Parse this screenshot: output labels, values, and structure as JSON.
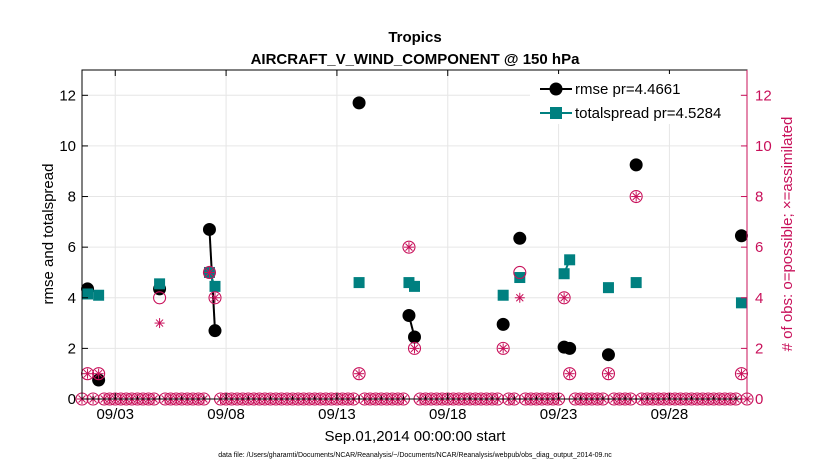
{
  "chart_data": {
    "type": "line",
    "title": "Tropics",
    "subtitle": "AIRCRAFT_V_WIND_COMPONENT @ 150 hPa",
    "xlabel": "Sep.01,2014 00:00:00 start",
    "ylabel": "rmse and totalspread",
    "ylabel_right": "# of obs: o=possible; ×=assimilated",
    "xlim": [
      1.5,
      31.5
    ],
    "ylim": [
      0,
      13
    ],
    "ylim_right": [
      0,
      13
    ],
    "x_ticks": [
      3,
      8,
      13,
      18,
      23,
      28
    ],
    "x_tick_labels": [
      "09/03",
      "09/08",
      "09/13",
      "09/18",
      "09/23",
      "09/28"
    ],
    "y_ticks": [
      0,
      2,
      4,
      6,
      8,
      10,
      12
    ],
    "y_tick_labels": [
      "0",
      "2",
      "4",
      "6",
      "8",
      "10",
      "12"
    ],
    "grid": true,
    "legend_position": "top-right",
    "series": [
      {
        "name": "rmse",
        "legend_label": "rmse pr=4.4661",
        "color": "#000000",
        "marker": "circle",
        "points": [
          [
            1.75,
            4.35
          ],
          [
            2.25,
            0.75
          ],
          [
            5.0,
            4.35
          ],
          [
            7.25,
            6.7
          ],
          [
            7.5,
            2.7
          ],
          [
            14.0,
            11.7
          ],
          [
            16.25,
            3.3
          ],
          [
            16.5,
            2.45
          ],
          [
            20.5,
            2.95
          ],
          [
            21.25,
            6.35
          ],
          [
            23.25,
            2.05
          ],
          [
            23.5,
            2.0
          ],
          [
            25.25,
            1.75
          ],
          [
            26.5,
            9.25
          ],
          [
            31.25,
            6.45
          ]
        ]
      },
      {
        "name": "totalspread",
        "legend_label": "totalspread pr=4.5284",
        "color": "#008080",
        "marker": "square",
        "points": [
          [
            1.75,
            4.15
          ],
          [
            2.25,
            4.1
          ],
          [
            5.0,
            4.55
          ],
          [
            7.25,
            5.0
          ],
          [
            7.5,
            4.45
          ],
          [
            14.0,
            4.6
          ],
          [
            16.25,
            4.6
          ],
          [
            16.5,
            4.45
          ],
          [
            20.5,
            4.1
          ],
          [
            21.25,
            4.8
          ],
          [
            23.25,
            4.95
          ],
          [
            23.5,
            5.5
          ],
          [
            25.25,
            4.4
          ],
          [
            26.5,
            4.6
          ],
          [
            31.25,
            3.8
          ]
        ]
      }
    ],
    "obs_possible": [
      [
        1.75,
        1
      ],
      [
        2.25,
        1
      ],
      [
        5.0,
        4
      ],
      [
        7.25,
        5
      ],
      [
        7.5,
        4
      ],
      [
        14.0,
        1
      ],
      [
        16.25,
        6
      ],
      [
        16.5,
        2
      ],
      [
        20.5,
        2
      ],
      [
        21.25,
        5
      ],
      [
        23.25,
        4
      ],
      [
        23.5,
        1
      ],
      [
        25.25,
        1
      ],
      [
        26.5,
        8
      ],
      [
        31.25,
        1
      ]
    ],
    "obs_assimilated": [
      [
        1.75,
        1
      ],
      [
        2.25,
        1
      ],
      [
        5.0,
        3
      ],
      [
        7.25,
        5
      ],
      [
        7.5,
        4
      ],
      [
        14.0,
        1
      ],
      [
        16.25,
        6
      ],
      [
        16.5,
        2
      ],
      [
        20.5,
        2
      ],
      [
        21.25,
        4
      ],
      [
        23.25,
        4
      ],
      [
        23.5,
        1
      ],
      [
        25.25,
        1
      ],
      [
        26.5,
        8
      ],
      [
        31.25,
        1
      ]
    ],
    "obs_zero_start": 1.5,
    "obs_zero_end": 31.5,
    "obs_zero_step": 0.25,
    "footnote": "data file: /Users/gharamti/Documents/NCAR/Reanalysis/~/Documents/NCAR/Reanalysis/webpub/obs_diag_output_2014-09.nc"
  },
  "colors": {
    "rmse": "#000000",
    "totalspread": "#008080",
    "obs": "#c8105a",
    "grid": "#e6e6e6"
  }
}
